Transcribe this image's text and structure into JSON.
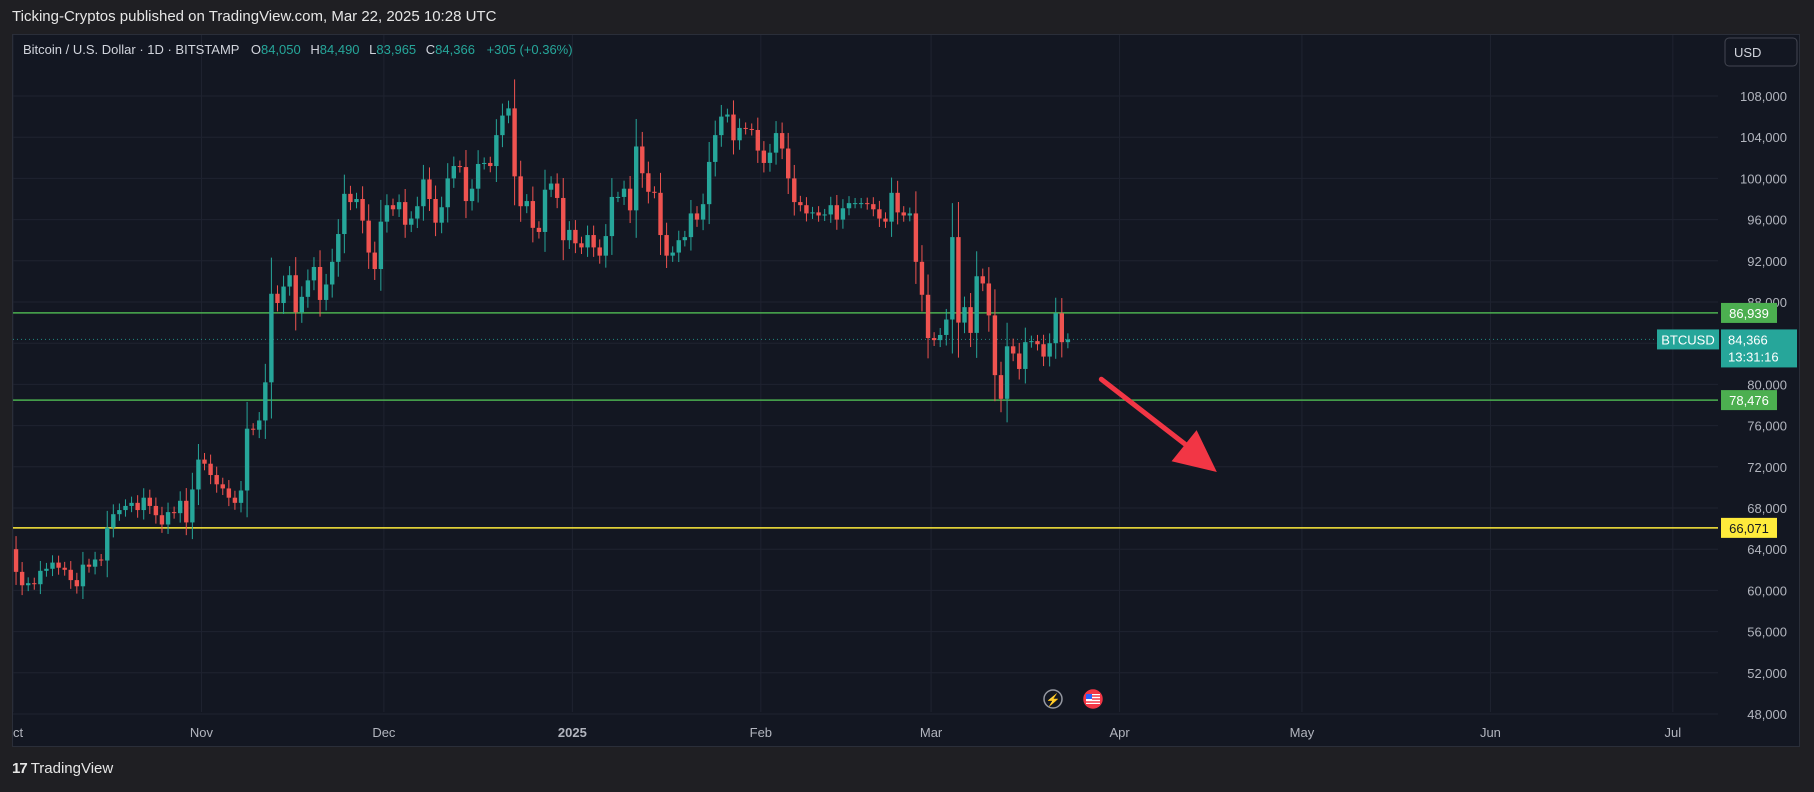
{
  "header": {
    "publish_text": "Ticking-Cryptos published on TradingView.com, Mar 22, 2025 10:28 UTC"
  },
  "footer": {
    "brand": "TradingView"
  },
  "symbol_bar": {
    "title": "Bitcoin / U.S. Dollar · 1D · BITSTAMP",
    "o_label": "O",
    "o_value": "84,050",
    "h_label": "H",
    "h_value": "84,490",
    "l_label": "L",
    "l_value": "83,965",
    "c_label": "C",
    "c_value": "84,366",
    "change": "+305 (+0.36%)"
  },
  "currency_button": "USD",
  "price_label": {
    "symbol": "BTCUSD",
    "price": "84,366",
    "countdown": "13:31:16"
  },
  "colors": {
    "background": "#131722",
    "up": "#26a69a",
    "down": "#ef5350",
    "level_green": "#4caf50",
    "level_yellow": "#ffeb3b",
    "arrow": "#f23645"
  },
  "chart_data": {
    "type": "candlestick",
    "symbol": "BTCUSD",
    "exchange": "BITSTAMP",
    "interval": "1D",
    "ylim": [
      48000,
      110000
    ],
    "ytick_values": [
      48000,
      52000,
      56000,
      60000,
      64000,
      68000,
      72000,
      76000,
      80000,
      84000,
      88000,
      92000,
      96000,
      100000,
      104000,
      108000
    ],
    "ytick_labels": [
      "48,000",
      "52,000",
      "56,000",
      "60,000",
      "64,000",
      "68,000",
      "72,000",
      "76,000",
      "80,000",
      "",
      "88,000",
      "92,000",
      "96,000",
      "100,000",
      "104,000",
      "108,000"
    ],
    "x_labels": [
      "Oct",
      "Nov",
      "Dec",
      "2025",
      "Feb",
      "Mar",
      "Apr",
      "May",
      "Jun",
      "Jul"
    ],
    "x_label_days": [
      0,
      31,
      61,
      92,
      123,
      151,
      182,
      212,
      243,
      273
    ],
    "xlim_days": [
      0,
      282
    ],
    "horizontal_levels": [
      {
        "value": 86939,
        "label": "86,939",
        "color": "#4caf50"
      },
      {
        "value": 78476,
        "label": "78,476",
        "color": "#4caf50"
      },
      {
        "value": 66071,
        "label": "66,071",
        "color": "#ffeb3b"
      }
    ],
    "current_price": 84366,
    "arrow_annotation": {
      "from": {
        "day": 179,
        "price": 80500
      },
      "to": {
        "day": 198,
        "price": 71500
      }
    },
    "closes": [
      61800,
      60500,
      60700,
      60600,
      61900,
      62100,
      62700,
      62200,
      62000,
      61000,
      60400,
      62500,
      62300,
      63000,
      62900,
      66100,
      67400,
      67800,
      68200,
      68500,
      67800,
      69000,
      68200,
      67300,
      66400,
      67600,
      67500,
      68700,
      66600,
      69800,
      72700,
      72300,
      71200,
      70300,
      69900,
      69000,
      68500,
      69700,
      75700,
      75600,
      76500,
      80200,
      88800,
      87900,
      89500,
      90600,
      87000,
      88500,
      90100,
      91400,
      88200,
      89700,
      91900,
      94600,
      98500,
      97700,
      98000,
      95900,
      92800,
      91200,
      95800,
      97400,
      97000,
      97700,
      95500,
      96100,
      97300,
      99900,
      98000,
      95700,
      97200,
      100000,
      101200,
      101100,
      97800,
      99000,
      101400,
      101500,
      101200,
      104200,
      106100,
      106800,
      100200,
      97300,
      97800,
      95200,
      94800,
      98900,
      99500,
      98100,
      94000,
      95000,
      93700,
      93300,
      94500,
      93300,
      92500,
      94400,
      98200,
      98200,
      99000,
      96900,
      103100,
      100500,
      98700,
      98600,
      94500,
      92500,
      92800,
      94000,
      94300,
      96600,
      96000,
      97500,
      101600,
      104200,
      106000,
      106200,
      103700,
      104900,
      104800,
      104700,
      102700,
      101500,
      102500,
      104400,
      102900,
      100000,
      97700,
      97400,
      96600,
      96700,
      96400,
      96500,
      97400,
      96000,
      97100,
      97600,
      97600,
      97600,
      97500,
      97000,
      96100,
      95800,
      98600,
      96700,
      96400,
      96600,
      91900,
      88700,
      84500,
      84300,
      84800,
      86300,
      94300,
      86000,
      87500,
      85000,
      90500,
      89800,
      86700,
      80900,
      78600,
      83700,
      83000,
      81500,
      84100,
      84200,
      83900,
      82700,
      84000,
      86900,
      84100,
      84366
    ]
  }
}
